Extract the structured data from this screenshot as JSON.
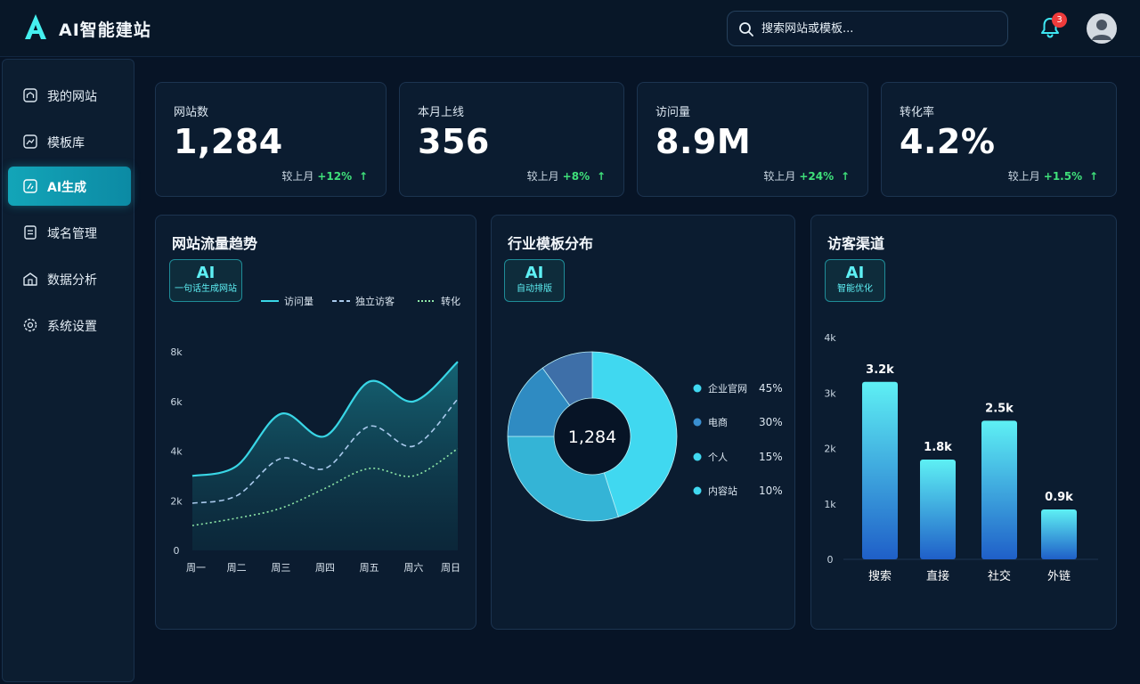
{
  "app": {
    "title": "AI智能建站"
  },
  "search": {
    "placeholder": "搜索网站或模板..."
  },
  "notifications": {
    "count": "3"
  },
  "sidebar": {
    "items": [
      {
        "label": "我的网站",
        "icon": "home-icon",
        "active": false
      },
      {
        "label": "模板库",
        "icon": "chart-icon",
        "active": false
      },
      {
        "label": "AI生成",
        "icon": "ai-icon",
        "active": true
      },
      {
        "label": "域名管理",
        "icon": "domain-icon",
        "active": false
      },
      {
        "label": "数据分析",
        "icon": "analytics-icon",
        "active": false
      },
      {
        "label": "系统设置",
        "icon": "gear-icon",
        "active": false
      }
    ]
  },
  "stats": [
    {
      "label": "网站数",
      "value": "1,284",
      "compare": "较上月",
      "change": "+12%"
    },
    {
      "label": "本月上线",
      "value": "356",
      "compare": "较上月",
      "change": "+8%"
    },
    {
      "label": "访问量",
      "value": "8.9M",
      "compare": "较上月",
      "change": "+24%"
    },
    {
      "label": "转化率",
      "value": "4.2%",
      "compare": "较上月",
      "change": "+1.5%"
    }
  ],
  "panels": {
    "traffic": {
      "title": "网站流量趋势",
      "badge_big": "AI",
      "badge_small": "一句话生成网站"
    },
    "templates": {
      "title": "行业模板分布",
      "badge_big": "AI",
      "badge_small": "自动排版"
    },
    "channels": {
      "title": "访客渠道",
      "badge_big": "AI",
      "badge_small": "智能优化"
    }
  },
  "colors": {
    "accent": "#3ee6f2",
    "background": "#071426",
    "positive": "#3fe07a",
    "active_nav": "#13a5b8"
  },
  "chart_data": [
    {
      "type": "line",
      "title": "网站流量趋势",
      "categories": [
        "周一",
        "周二",
        "周三",
        "周四",
        "周五",
        "周六",
        "周日"
      ],
      "ylim": [
        0,
        8000
      ],
      "yticks": [
        0,
        2000,
        4000,
        6000,
        8000
      ],
      "ytick_labels": [
        "0",
        "2k",
        "4k",
        "6k",
        "8k"
      ],
      "legend": "top-right",
      "series": [
        {
          "name": "访问量",
          "style": "solid",
          "color": "#39d6e6",
          "values": [
            3000,
            3400,
            5500,
            4600,
            6800,
            6000,
            7600
          ]
        },
        {
          "name": "独立访客",
          "style": "dashed",
          "color": "#a9c9ec",
          "values": [
            1900,
            2200,
            3700,
            3300,
            5000,
            4200,
            6100
          ]
        },
        {
          "name": "转化",
          "style": "dotted",
          "color": "#8fe8a8",
          "values": [
            1000,
            1300,
            1700,
            2500,
            3300,
            3000,
            4100
          ]
        }
      ]
    },
    {
      "type": "pie",
      "title": "行业模板分布",
      "center_label": "1,284",
      "slices": [
        {
          "name": "企业官网",
          "value": 45,
          "label": "45%",
          "color": "#40d8f0"
        },
        {
          "name": "电商",
          "value": 30,
          "label": "30%",
          "color": "#34b4d6"
        },
        {
          "name": "个人",
          "value": 15,
          "label": "15%",
          "color": "#2f8bc2"
        },
        {
          "name": "内容站",
          "value": 10,
          "label": "10%",
          "color": "#3e6fa8"
        }
      ]
    },
    {
      "type": "bar",
      "title": "访客渠道",
      "categories": [
        "搜索",
        "直接",
        "社交",
        "外链"
      ],
      "values": [
        3200,
        1800,
        2500,
        900
      ],
      "value_labels": [
        "3.2k",
        "1.8k",
        "2.5k",
        "0.9k"
      ],
      "ylim": [
        0,
        4000
      ],
      "yticks": [
        0,
        1000,
        2000,
        3000,
        4000
      ],
      "ytick_labels": [
        "0",
        "1k",
        "2k",
        "3k",
        "4k"
      ]
    }
  ]
}
